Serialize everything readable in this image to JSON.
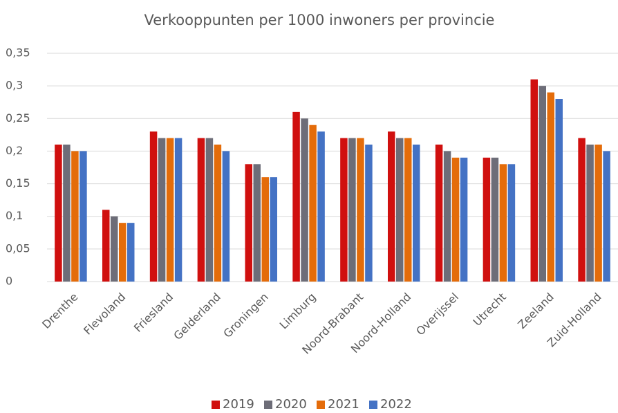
{
  "chart_data": {
    "type": "bar",
    "title": "Verkooppunten per 1000 inwoners per provincie",
    "categories": [
      "Drenthe",
      "Flevoland",
      "Friesland",
      "Gelderland",
      "Groningen",
      "Limburg",
      "Noord-Brabant",
      "Noord-Holland",
      "Overijssel",
      "Utrecht",
      "Zeeland",
      "Zuid-Holland"
    ],
    "series": [
      {
        "name": "2019",
        "color": "#d0100f",
        "values": [
          0.21,
          0.11,
          0.23,
          0.22,
          0.18,
          0.26,
          0.22,
          0.23,
          0.21,
          0.19,
          0.31,
          0.22
        ]
      },
      {
        "name": "2020",
        "color": "#6d6d78",
        "values": [
          0.21,
          0.1,
          0.22,
          0.22,
          0.18,
          0.25,
          0.22,
          0.22,
          0.2,
          0.19,
          0.3,
          0.21
        ]
      },
      {
        "name": "2021",
        "color": "#e46c0a",
        "values": [
          0.2,
          0.09,
          0.22,
          0.21,
          0.16,
          0.24,
          0.22,
          0.22,
          0.19,
          0.18,
          0.29,
          0.21
        ]
      },
      {
        "name": "2022",
        "color": "#4472c4",
        "values": [
          0.2,
          0.09,
          0.22,
          0.2,
          0.16,
          0.23,
          0.21,
          0.21,
          0.19,
          0.18,
          0.28,
          0.2
        ]
      }
    ],
    "ylim": [
      0,
      0.35
    ],
    "yticks": [
      0,
      {
        "value": 0.05,
        "label": "0,05"
      },
      {
        "value": 0.1,
        "label": "0,1"
      },
      {
        "value": 0.15,
        "label": "0,15"
      },
      {
        "value": 0.2,
        "label": "0,2"
      },
      {
        "value": 0.25,
        "label": "0,25"
      },
      {
        "value": 0.3,
        "label": "0,3"
      },
      {
        "value": 0.35,
        "label": "0,35"
      }
    ],
    "grid": true,
    "legend": "bottom"
  }
}
